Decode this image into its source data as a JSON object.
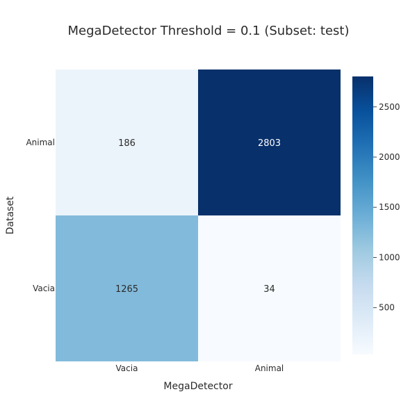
{
  "chart_data": {
    "type": "heatmap",
    "title": "MegaDetector Threshold = 0.1 (Subset: test)",
    "xlabel": "MegaDetector",
    "ylabel": "Dataset",
    "x_categories": [
      "Vacia",
      "Animal"
    ],
    "y_categories": [
      "Animal",
      "Vacia"
    ],
    "values": [
      [
        186,
        2803
      ],
      [
        1265,
        34
      ]
    ],
    "colorscale": "Blues",
    "colorbar": {
      "range": [
        34,
        2803
      ],
      "ticks": [
        500,
        1000,
        1500,
        2000,
        2500
      ]
    }
  }
}
